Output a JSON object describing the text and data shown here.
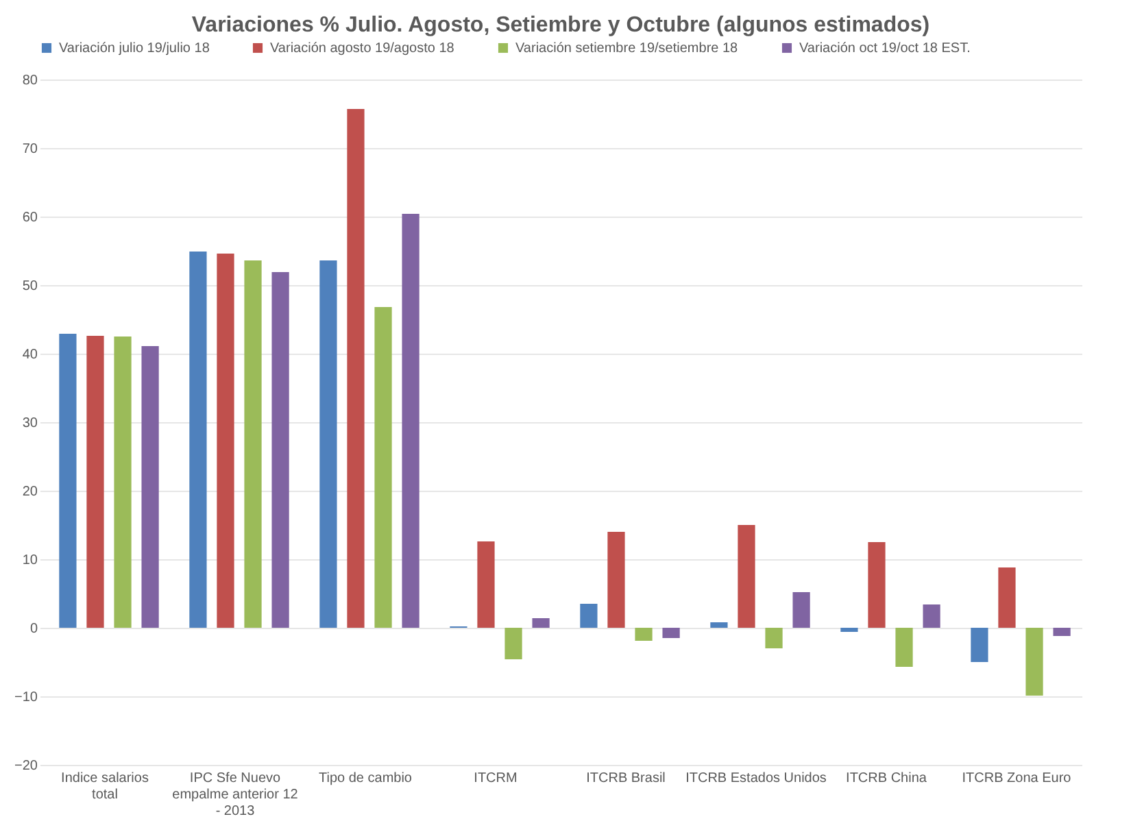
{
  "chart_data": {
    "type": "bar",
    "title": "Variaciones % Julio. Agosto, Setiembre y Octubre (algunos estimados)",
    "categories": [
      "Indice salarios total",
      "IPC Sfe Nuevo empalme anterior 12 - 2013",
      "Tipo de cambio",
      "ITCRM",
      "ITCRB Brasil",
      "ITCRB Estados Unidos",
      "ITCRB China",
      "ITCRB Zona Euro"
    ],
    "series": [
      {
        "name": "Variación julio 19/julio 18",
        "color": "#4f81bd",
        "values": [
          42.9,
          54.9,
          53.6,
          0.2,
          3.5,
          0.8,
          -0.6,
          -5.0
        ]
      },
      {
        "name": "Variación agosto 19/agosto 18",
        "color": "#c0504d",
        "values": [
          42.6,
          54.6,
          75.7,
          12.6,
          14.0,
          15.0,
          12.5,
          8.8
        ]
      },
      {
        "name": "Variación setiembre 19/setiembre 18",
        "color": "#9bbb59",
        "values": [
          42.5,
          53.6,
          46.8,
          -4.6,
          -1.9,
          -3.0,
          -5.7,
          -9.9
        ]
      },
      {
        "name": "Variación oct 19/oct 18 EST.",
        "color": "#8064a2",
        "values": [
          41.1,
          51.9,
          60.4,
          1.4,
          -1.5,
          5.2,
          3.4,
          -1.2
        ]
      }
    ],
    "ylim": [
      -20,
      80
    ],
    "yticks": [
      -20,
      -10,
      0,
      10,
      20,
      30,
      40,
      50,
      60,
      70,
      80
    ],
    "grid": "y",
    "legend": "top"
  }
}
